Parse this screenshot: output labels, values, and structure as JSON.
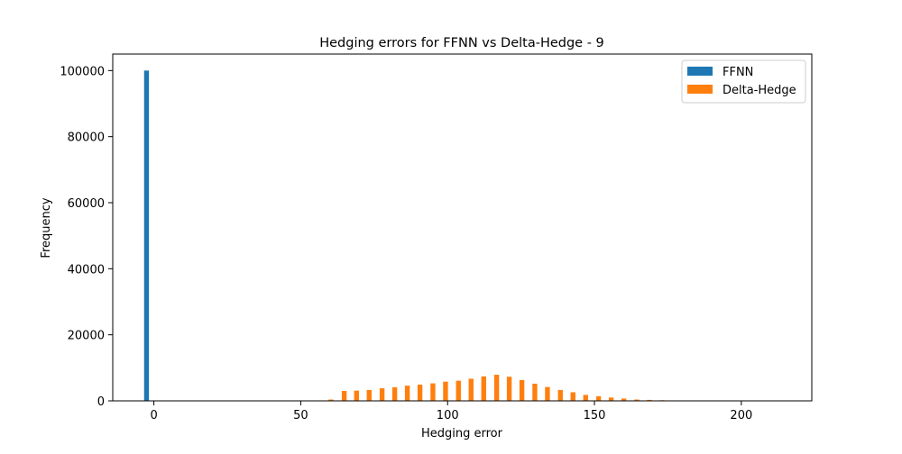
{
  "chart_data": {
    "type": "bar",
    "title": "Hedging errors for FFNN vs Delta-Hedge - 9",
    "xlabel": "Hedging error",
    "ylabel": "Frequency",
    "xlim": [
      -14,
      224
    ],
    "ylim": [
      0,
      105000
    ],
    "xticks": [
      0,
      50,
      100,
      150,
      200
    ],
    "yticks": [
      0,
      20000,
      40000,
      60000,
      80000,
      100000
    ],
    "legend_position": "top-right",
    "colors": {
      "FFNN": "#1f77b4",
      "Delta-Hedge": "#ff7f0e"
    },
    "bin_width": 1.65,
    "series": [
      {
        "name": "FFNN",
        "x": [
          -2.5
        ],
        "values": [
          100000
        ]
      },
      {
        "name": "Delta-Hedge",
        "x": [
          60.3,
          64.8,
          69.0,
          73.3,
          77.7,
          82.0,
          86.3,
          90.6,
          95.0,
          99.3,
          103.7,
          108.0,
          112.3,
          116.7,
          121.0,
          125.3,
          129.7,
          134.0,
          138.4,
          142.7,
          147.0,
          151.4,
          155.7,
          160.0,
          164.4,
          168.7,
          173.0
        ],
        "values": [
          400,
          3000,
          3100,
          3300,
          3800,
          4100,
          4600,
          4900,
          5300,
          5800,
          6100,
          6700,
          7400,
          7900,
          7300,
          6300,
          5200,
          4200,
          3300,
          2600,
          1800,
          1400,
          1000,
          700,
          400,
          300,
          200
        ]
      }
    ]
  }
}
